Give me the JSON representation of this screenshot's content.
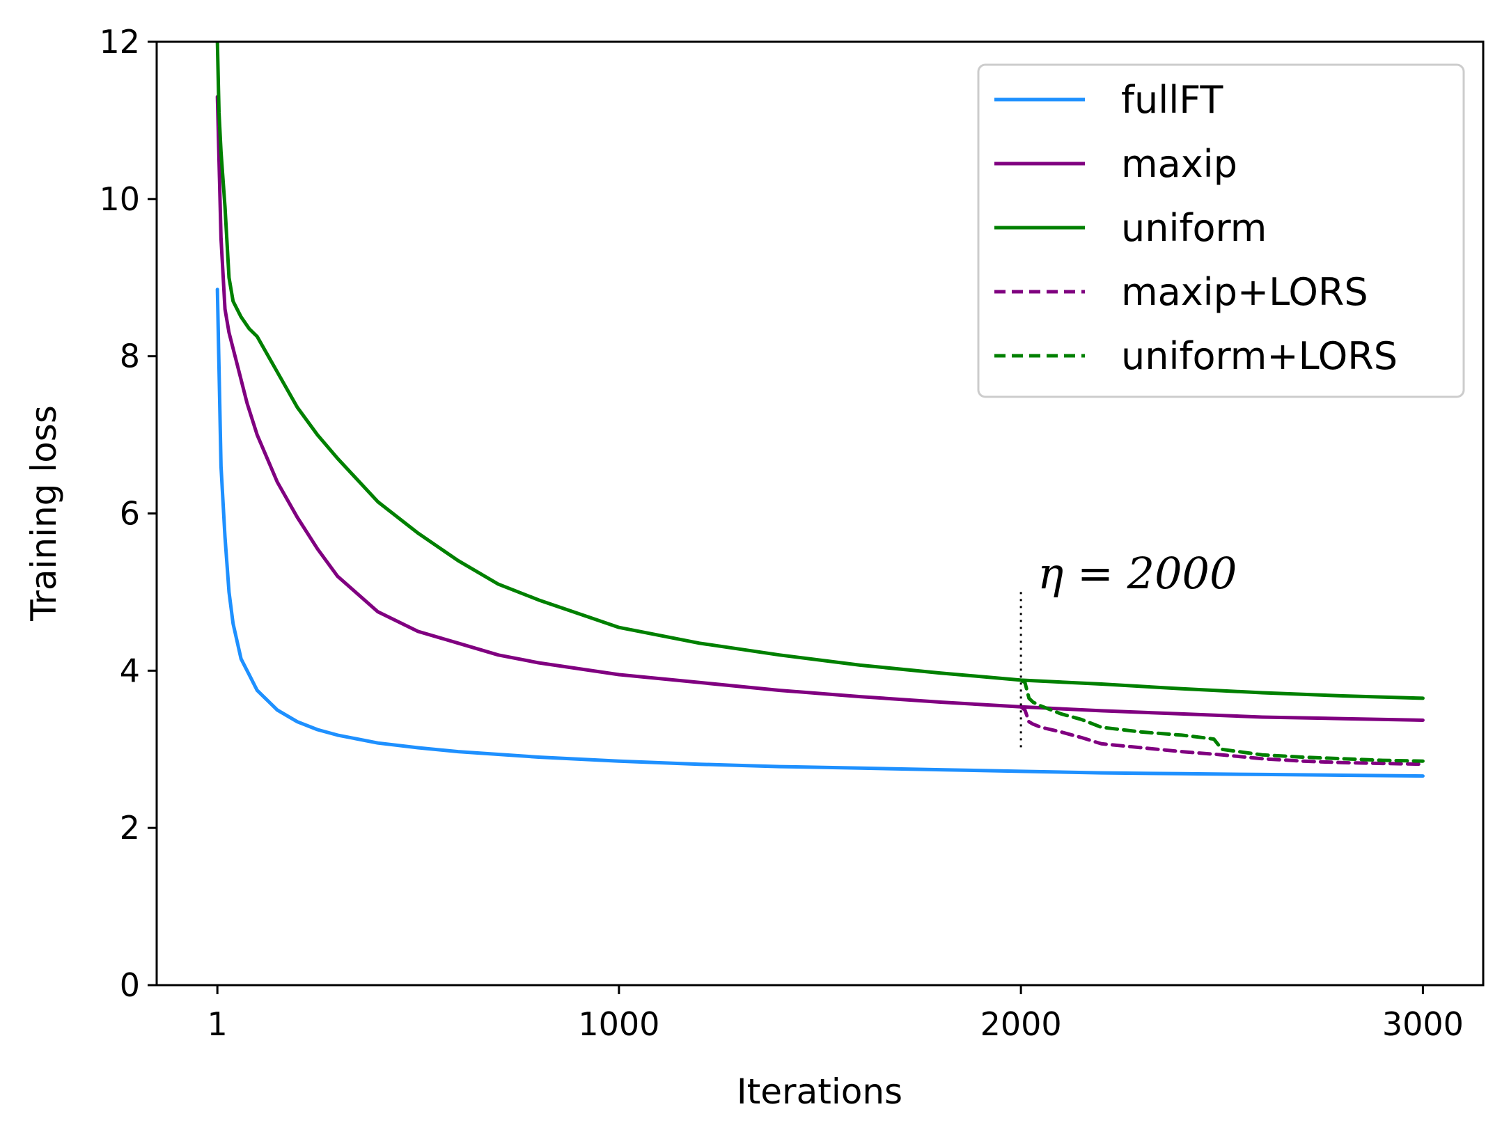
{
  "chart_data": {
    "type": "line",
    "title": "",
    "xlabel": "Iterations",
    "ylabel": "Training loss",
    "xlim": [
      -150,
      3150
    ],
    "ylim": [
      0,
      12
    ],
    "xticks": [
      1,
      1000,
      2000,
      3000
    ],
    "xtick_labels": [
      "1",
      "1000",
      "2000",
      "3000"
    ],
    "yticks": [
      0,
      2,
      4,
      6,
      8,
      10,
      12
    ],
    "ytick_labels": [
      "0",
      "2",
      "4",
      "6",
      "8",
      "10",
      "12"
    ],
    "grid": false,
    "legend_position": "top-right",
    "annotation": {
      "text": "η = 2000",
      "x": 2000,
      "line_ymin": 3.0,
      "line_ymax": 5.0,
      "text_y": 5.05
    },
    "series": [
      {
        "name": "fullFT",
        "color": "#1E90FF",
        "style": "solid",
        "x": [
          1,
          10,
          20,
          30,
          40,
          60,
          80,
          100,
          150,
          200,
          250,
          300,
          400,
          500,
          600,
          800,
          1000,
          1200,
          1400,
          1600,
          1800,
          2000,
          2200,
          2400,
          2600,
          2800,
          3000
        ],
        "y": [
          8.85,
          6.6,
          5.7,
          5.0,
          4.6,
          4.15,
          3.95,
          3.75,
          3.5,
          3.35,
          3.25,
          3.18,
          3.08,
          3.02,
          2.97,
          2.9,
          2.85,
          2.81,
          2.78,
          2.76,
          2.74,
          2.72,
          2.7,
          2.69,
          2.68,
          2.67,
          2.66
        ]
      },
      {
        "name": "maxip",
        "color": "#800080",
        "style": "solid",
        "x": [
          1,
          10,
          20,
          30,
          50,
          75,
          100,
          150,
          200,
          250,
          300,
          400,
          500,
          600,
          700,
          800,
          1000,
          1200,
          1400,
          1600,
          1800,
          2000,
          2200,
          2400,
          2600,
          2800,
          3000
        ],
        "y": [
          11.3,
          9.5,
          8.6,
          8.3,
          7.9,
          7.4,
          7.0,
          6.4,
          5.95,
          5.55,
          5.2,
          4.75,
          4.5,
          4.35,
          4.2,
          4.1,
          3.95,
          3.85,
          3.75,
          3.67,
          3.6,
          3.54,
          3.49,
          3.45,
          3.41,
          3.39,
          3.37
        ]
      },
      {
        "name": "uniform",
        "color": "#008000",
        "style": "solid",
        "x": [
          1,
          5,
          10,
          20,
          30,
          40,
          60,
          80,
          100,
          150,
          200,
          250,
          300,
          400,
          500,
          600,
          700,
          800,
          1000,
          1200,
          1400,
          1600,
          1800,
          2000,
          2200,
          2400,
          2600,
          2800,
          3000
        ],
        "y": [
          12.0,
          11.1,
          10.6,
          9.9,
          9.0,
          8.7,
          8.5,
          8.35,
          8.25,
          7.8,
          7.35,
          7.0,
          6.7,
          6.15,
          5.75,
          5.4,
          5.1,
          4.9,
          4.55,
          4.35,
          4.2,
          4.07,
          3.97,
          3.88,
          3.83,
          3.77,
          3.72,
          3.68,
          3.65
        ]
      },
      {
        "name": "maxip+LORS",
        "color": "#800080",
        "style": "dashed",
        "x": [
          2000,
          2010,
          2020,
          2030,
          2050,
          2100,
          2150,
          2200,
          2300,
          2400,
          2500,
          2600,
          2700,
          2800,
          2900,
          3000
        ],
        "y": [
          3.54,
          3.5,
          3.35,
          3.32,
          3.28,
          3.22,
          3.15,
          3.07,
          3.02,
          2.97,
          2.93,
          2.88,
          2.85,
          2.83,
          2.82,
          2.81
        ]
      },
      {
        "name": "uniform+LORS",
        "color": "#008000",
        "style": "dashed",
        "x": [
          2000,
          2010,
          2020,
          2030,
          2050,
          2100,
          2150,
          2200,
          2300,
          2400,
          2450,
          2480,
          2500,
          2600,
          2700,
          2800,
          2900,
          3000
        ],
        "y": [
          3.88,
          3.85,
          3.65,
          3.6,
          3.55,
          3.45,
          3.38,
          3.28,
          3.22,
          3.18,
          3.15,
          3.13,
          3.0,
          2.93,
          2.9,
          2.88,
          2.86,
          2.85
        ]
      }
    ]
  }
}
